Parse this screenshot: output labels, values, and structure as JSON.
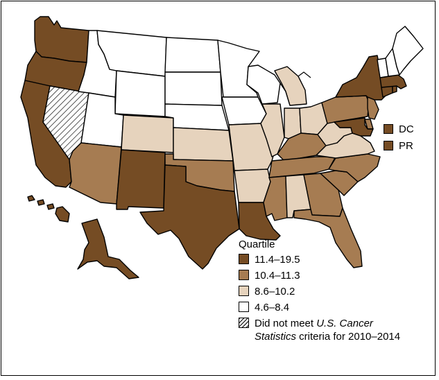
{
  "map": {
    "colors": {
      "q1": "#754c24",
      "q2": "#a67c52",
      "q3": "#e6d3bd",
      "q4": "#ffffff"
    },
    "states": {
      "WA": "q1",
      "OR": "q1",
      "CA": "q1",
      "NV": "na",
      "ID": "q4",
      "MT": "q4",
      "WY": "q4",
      "UT": "q4",
      "AZ": "q2",
      "CO": "q3",
      "NM": "q1",
      "ND": "q4",
      "SD": "q4",
      "NE": "q4",
      "KS": "q3",
      "OK": "q2",
      "TX": "q1",
      "MN": "q4",
      "IA": "q4",
      "MO": "q3",
      "AR": "q3",
      "LA": "q1",
      "WI": "q4",
      "IL": "q3",
      "MI": "q3",
      "IN": "q3",
      "OH": "q3",
      "KY": "q2",
      "TN": "q2",
      "MS": "q2",
      "AL": "q3",
      "GA": "q2",
      "FL": "q2",
      "SC": "q2",
      "NC": "q2",
      "VA": "q3",
      "WV": "q3",
      "PA": "q2",
      "NY": "q1",
      "ME": "q4",
      "NH": "q4",
      "VT": "q4",
      "MA": "q1",
      "CT": "q1",
      "RI": "q1",
      "NJ": "q2",
      "DE": "q2",
      "MD": "q1",
      "AK": "q1",
      "HI": "q1"
    },
    "extra_areas": [
      {
        "label": "DC",
        "quartile": "q1"
      },
      {
        "label": "PR",
        "quartile": "q1"
      }
    ]
  },
  "legend": {
    "title": "Quartile",
    "items": [
      {
        "label": "11.4–19.5",
        "quartile": "q1"
      },
      {
        "label": "10.4–11.3",
        "quartile": "q2"
      },
      {
        "label": "8.6–10.2",
        "quartile": "q3"
      },
      {
        "label": "4.6–8.4",
        "quartile": "q4"
      }
    ],
    "na_prefix": "Did not meet ",
    "na_italic": "U.S. Cancer Statistics",
    "na_suffix": " criteria for 2010–2014"
  }
}
